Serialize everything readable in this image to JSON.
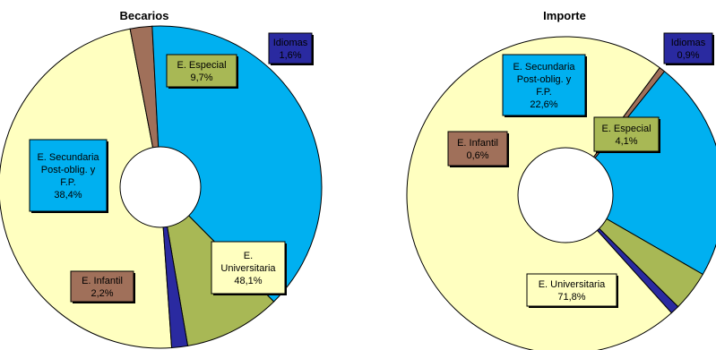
{
  "chart_data": [
    {
      "type": "pie",
      "title": "Becarios",
      "slices": [
        {
          "name": "E. Universitaria",
          "label": [
            "E.",
            "Universitaria",
            "48,1%"
          ],
          "value": 48.1,
          "color": "#ffffc0"
        },
        {
          "name": "E. Infantil",
          "label": [
            "E. Infantil",
            "2,2%"
          ],
          "value": 2.2,
          "color": "#a0705a"
        },
        {
          "name": "E. Secundaria Post-oblig. y F.P.",
          "label": [
            "E. Secundaria",
            "Post-oblig. y",
            "F.P.",
            "38,4%"
          ],
          "value": 38.4,
          "color": "#00b0f0"
        },
        {
          "name": "E. Especial",
          "label": [
            "E. Especial",
            "9,7%"
          ],
          "value": 9.7,
          "color": "#a8b855"
        },
        {
          "name": "Idiomas",
          "label": [
            "Idiomas",
            "1,6%"
          ],
          "value": 1.6,
          "color": "#2a2aa0"
        }
      ]
    },
    {
      "type": "pie",
      "title": "Importe",
      "slices": [
        {
          "name": "E. Universitaria",
          "label": [
            "E. Universitaria",
            "71,8%"
          ],
          "value": 71.8,
          "color": "#ffffc0"
        },
        {
          "name": "E. Infantil",
          "label": [
            "E. Infantil",
            "0,6%"
          ],
          "value": 0.6,
          "color": "#a0705a"
        },
        {
          "name": "E. Secundaria Post-oblig. y F.P.",
          "label": [
            "E. Secundaria",
            "Post-oblig. y",
            "F.P.",
            "22,6%"
          ],
          "value": 22.6,
          "color": "#00b0f0"
        },
        {
          "name": "E. Especial",
          "label": [
            "E. Especial",
            "4,1%"
          ],
          "value": 4.1,
          "color": "#a8b855"
        },
        {
          "name": "Idiomas",
          "label": [
            "Idiomas",
            "0,9%"
          ],
          "value": 0.9,
          "color": "#2a2aa0"
        }
      ]
    }
  ]
}
